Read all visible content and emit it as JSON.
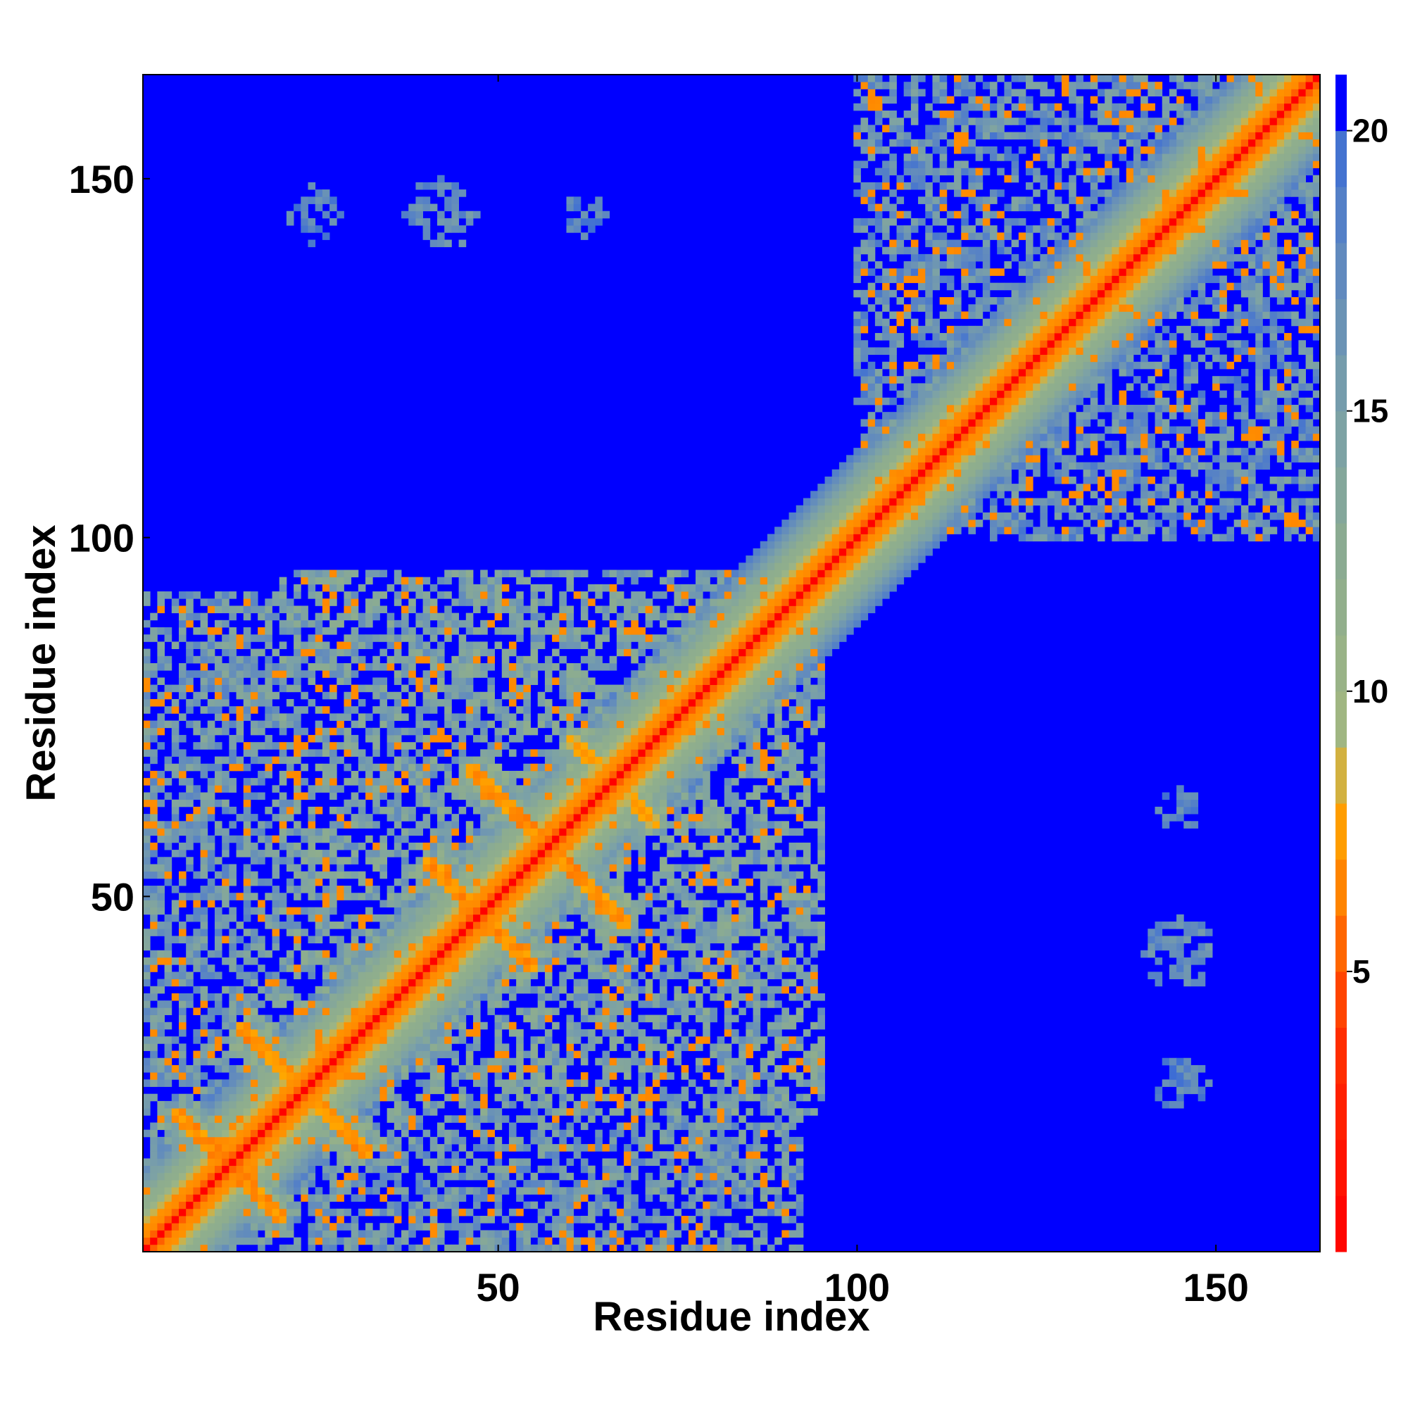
{
  "chart_data": {
    "type": "heatmap",
    "title": "",
    "xlabel": "Residue index",
    "ylabel": "Residue index",
    "n_residues": 164,
    "xlim": [
      1,
      164
    ],
    "ylim": [
      1,
      164
    ],
    "x_ticks": [
      50,
      100,
      150
    ],
    "y_ticks": [
      50,
      100,
      150
    ],
    "x_tick_labels": [
      "50",
      "100",
      "150"
    ],
    "y_tick_labels": [
      "50",
      "100",
      "150"
    ],
    "colorbar": {
      "range": [
        0,
        21
      ],
      "ticks": [
        5,
        10,
        15,
        20
      ],
      "tick_labels": [
        "5",
        "10",
        "15",
        "20"
      ],
      "colors": [
        {
          "value": 0,
          "color": "#ff0000"
        },
        {
          "value": 4,
          "color": "#ff3300"
        },
        {
          "value": 6,
          "color": "#ff7700"
        },
        {
          "value": 8,
          "color": "#ffaa00"
        },
        {
          "value": 9,
          "color": "#a4b880"
        },
        {
          "value": 12,
          "color": "#8ead8e"
        },
        {
          "value": 15,
          "color": "#7aa0a8"
        },
        {
          "value": 18,
          "color": "#5c86c2"
        },
        {
          "value": 20,
          "color": "#3c6dd5"
        },
        {
          "value": 21,
          "color": "#0000ff"
        }
      ],
      "overflow_color": "#0000ff"
    },
    "description_values": {
      "diagonal_distance": 3.8,
      "cutoff_distance": 21
    },
    "contact_regions": [
      {
        "x": [
          1,
          92
        ],
        "y": [
          1,
          92
        ],
        "level": 13
      },
      {
        "x": [
          100,
          164
        ],
        "y": [
          100,
          164
        ],
        "level": 14
      },
      {
        "x": [
          20,
          95
        ],
        "y": [
          20,
          95
        ],
        "level": 12
      }
    ],
    "strand_pairs": [
      {
        "from": [
          20,
          5
        ],
        "to": [
          5,
          20
        ],
        "level": 6
      },
      {
        "from": [
          32,
          14
        ],
        "to": [
          14,
          32
        ],
        "level": 6
      },
      {
        "from": [
          55,
          40
        ],
        "to": [
          40,
          55
        ],
        "level": 6
      },
      {
        "from": [
          68,
          46
        ],
        "to": [
          46,
          68
        ],
        "level": 6
      },
      {
        "from": [
          60,
          72
        ],
        "to": [
          72,
          60
        ],
        "level": 7
      }
    ],
    "islands": [
      {
        "cx": 24,
        "cy": 145,
        "r": 4,
        "level": 16
      },
      {
        "cx": 42,
        "cy": 145,
        "r": 5,
        "level": 15
      },
      {
        "cx": 62,
        "cy": 145,
        "r": 3,
        "level": 16
      },
      {
        "cx": 145,
        "cy": 62,
        "r": 3,
        "level": 16
      },
      {
        "cx": 145,
        "cy": 42,
        "r": 5,
        "level": 15
      },
      {
        "cx": 145,
        "cy": 24,
        "r": 4,
        "level": 16
      }
    ]
  }
}
